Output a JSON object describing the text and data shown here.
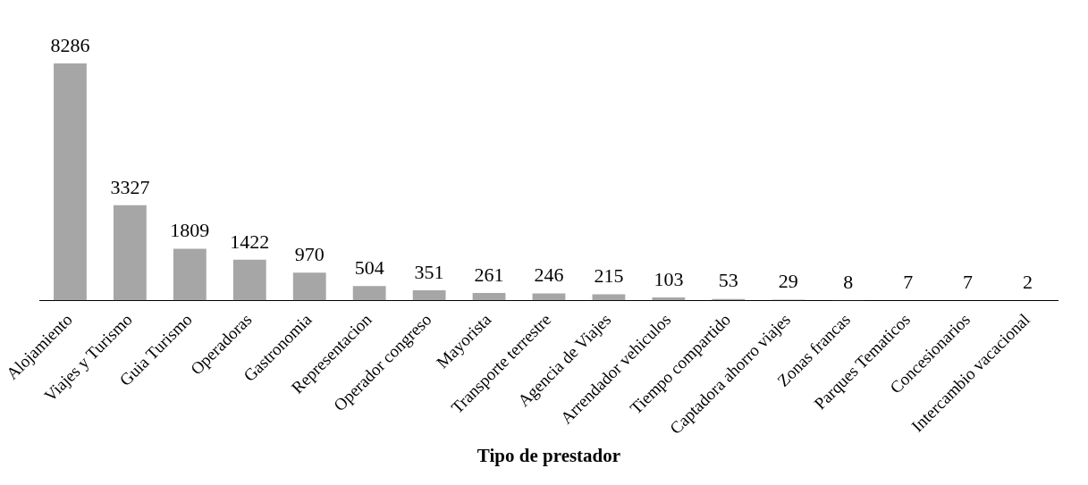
{
  "chart_data": {
    "type": "bar",
    "xlabel": "Tipo de prestador",
    "categories": [
      "Alojamiento",
      "Viajes y Turismo",
      "Guia Turismo",
      "Operadoras",
      "Gastronomia",
      "Representacion",
      "Operador congreso",
      "Mayorista",
      "Transporte terrestre",
      "Agencia de Viajes",
      "Arrendador vehiculos",
      "Tiempo compartido",
      "Captadora ahorro viajes",
      "Zonas francas",
      "Parques Tematicos",
      "Concesionarios",
      "Intercambio vacacional"
    ],
    "values": [
      8286,
      3327,
      1809,
      1422,
      970,
      504,
      351,
      261,
      246,
      215,
      103,
      53,
      29,
      8,
      7,
      7,
      2
    ],
    "color": "#a6a6a6",
    "data_labels": true,
    "tick_labels": "x",
    "grid": false,
    "legend": false
  }
}
